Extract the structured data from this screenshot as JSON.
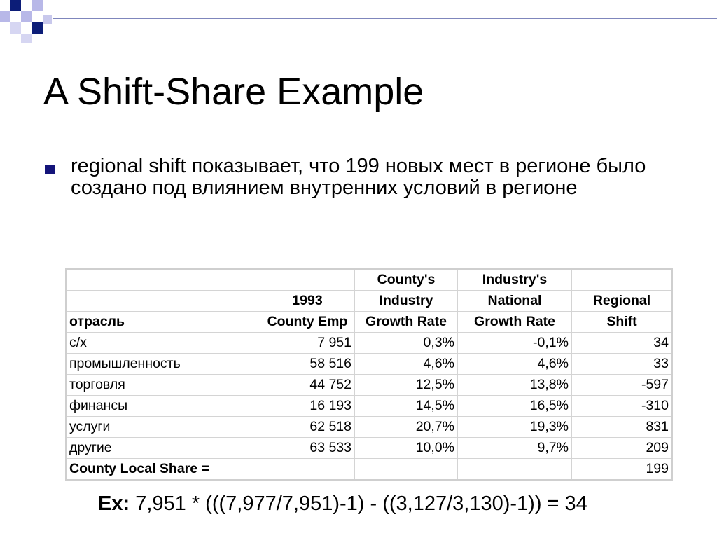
{
  "slide": {
    "title": "A Shift-Share Example",
    "bullet": "regional shift показывает, что 199 новых мест в регионе было создано под влиянием внутренних условий в регионе",
    "example_label": "Ex:",
    "example_formula": " 7,951 * (((7,977/7,951)-1) - ((3,127/3,130)-1)) = 34"
  },
  "colors": {
    "bullet": "#14147a",
    "deco_dark": "#0c1d78",
    "deco_light": "#b8b8e8",
    "table_border": "#d4d4d4"
  },
  "table": {
    "header": [
      [
        "",
        "",
        "County's",
        "Industry's",
        ""
      ],
      [
        "",
        "1993",
        "Industry",
        "National",
        "Regional"
      ],
      [
        "отрасль",
        "County Emp",
        "Growth Rate",
        "Growth Rate",
        "Shift"
      ]
    ],
    "rows": [
      [
        "с/х",
        "7 951",
        "0,3%",
        "-0,1%",
        "34"
      ],
      [
        "промышленность",
        "58 516",
        "4,6%",
        "4,6%",
        "33"
      ],
      [
        "торговля",
        "44 752",
        "12,5%",
        "13,8%",
        "-597"
      ],
      [
        "финансы",
        "16 193",
        "14,5%",
        "16,5%",
        "-310"
      ],
      [
        "услуги",
        "62 518",
        "20,7%",
        "19,3%",
        "831"
      ],
      [
        "другие",
        "63 533",
        "10,0%",
        "9,7%",
        "209"
      ]
    ],
    "total_label": "County Local Share =",
    "total_value": "199"
  }
}
